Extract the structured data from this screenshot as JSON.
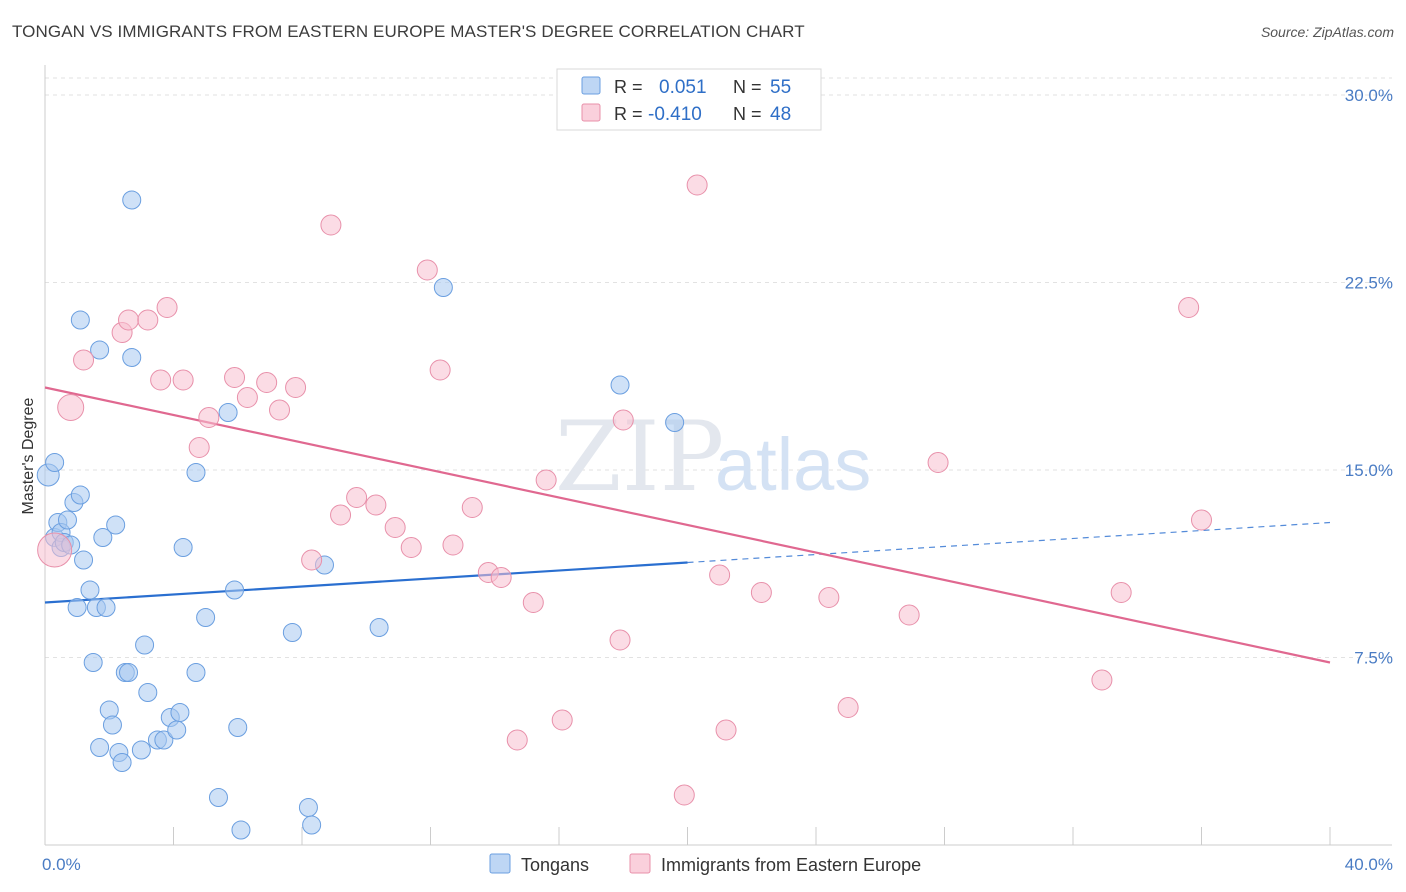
{
  "title": "TONGAN VS IMMIGRANTS FROM EASTERN EUROPE MASTER'S DEGREE CORRELATION CHART",
  "source": "Source: ZipAtlas.com",
  "watermark": {
    "zip": "ZIP",
    "atlas": "atlas"
  },
  "chart_data": {
    "type": "scatter",
    "title": "TONGAN VS IMMIGRANTS FROM EASTERN EUROPE MASTER'S DEGREE CORRELATION CHART",
    "xlabel": "",
    "ylabel": "Master's Degree",
    "xlim": [
      0,
      40
    ],
    "ylim": [
      0,
      31
    ],
    "x_tick_labels": [
      {
        "value": 0,
        "label": "0.0%"
      },
      {
        "value": 40,
        "label": "40.0%"
      }
    ],
    "y_tick_labels": [
      {
        "value": 7.5,
        "label": "7.5%"
      },
      {
        "value": 15.0,
        "label": "15.0%"
      },
      {
        "value": 22.5,
        "label": "22.5%"
      },
      {
        "value": 30.0,
        "label": "30.0%"
      }
    ],
    "grid": true,
    "legend_position": "top-center",
    "stats": [
      {
        "r_label": "R =",
        "r_value": "0.051",
        "n_label": "N =",
        "n_value": "55"
      },
      {
        "r_label": "R =",
        "r_value": "-0.410",
        "n_label": "N =",
        "n_value": "48"
      }
    ],
    "series": [
      {
        "name": "Tongans",
        "color": "#a8c8f0",
        "stroke": "#6b9fe0",
        "trend_color": "#2a6fd0",
        "trend": {
          "x0": 0,
          "y0": 9.7,
          "x1": 20,
          "y1": 11.3,
          "dash_x1": 40,
          "dash_y1": 12.9
        },
        "points": [
          [
            0.1,
            14.8
          ],
          [
            0.3,
            15.3
          ],
          [
            0.3,
            12.3
          ],
          [
            0.4,
            12.9
          ],
          [
            0.5,
            11.9
          ],
          [
            0.5,
            12.5
          ],
          [
            0.6,
            12.1
          ],
          [
            0.7,
            13.0
          ],
          [
            0.8,
            12.0
          ],
          [
            0.9,
            13.7
          ],
          [
            1.0,
            9.5
          ],
          [
            1.1,
            14.0
          ],
          [
            1.2,
            11.4
          ],
          [
            1.1,
            21.0
          ],
          [
            1.4,
            10.2
          ],
          [
            1.5,
            7.3
          ],
          [
            1.6,
            9.5
          ],
          [
            1.7,
            19.8
          ],
          [
            1.7,
            3.9
          ],
          [
            1.8,
            12.3
          ],
          [
            1.9,
            9.5
          ],
          [
            2.0,
            5.4
          ],
          [
            2.1,
            4.8
          ],
          [
            2.2,
            12.8
          ],
          [
            2.3,
            3.7
          ],
          [
            2.4,
            3.3
          ],
          [
            2.5,
            6.9
          ],
          [
            2.6,
            6.9
          ],
          [
            2.7,
            19.5
          ],
          [
            2.7,
            25.8
          ],
          [
            3.0,
            3.8
          ],
          [
            3.1,
            8.0
          ],
          [
            3.2,
            6.1
          ],
          [
            3.5,
            4.2
          ],
          [
            3.7,
            4.2
          ],
          [
            3.9,
            5.1
          ],
          [
            4.1,
            4.6
          ],
          [
            4.2,
            5.3
          ],
          [
            4.3,
            11.9
          ],
          [
            4.7,
            6.9
          ],
          [
            4.7,
            14.9
          ],
          [
            5.0,
            9.1
          ],
          [
            5.4,
            1.9
          ],
          [
            5.7,
            17.3
          ],
          [
            5.9,
            10.2
          ],
          [
            6.0,
            4.7
          ],
          [
            6.1,
            0.6
          ],
          [
            7.7,
            8.5
          ],
          [
            8.2,
            1.5
          ],
          [
            8.3,
            0.8
          ],
          [
            8.7,
            11.2
          ],
          [
            10.4,
            8.7
          ],
          [
            12.4,
            22.3
          ],
          [
            17.9,
            18.4
          ],
          [
            19.6,
            16.9
          ]
        ],
        "sizes": [
          11,
          9,
          9,
          9,
          9,
          9,
          9,
          9,
          9,
          9,
          9,
          9,
          9,
          9,
          9,
          9,
          9,
          9,
          9,
          9,
          9,
          9,
          9,
          9,
          9,
          9,
          9,
          9,
          9,
          9,
          9,
          9,
          9,
          9,
          9,
          9,
          9,
          9,
          9,
          9,
          9,
          9,
          9,
          9,
          9,
          9,
          9,
          9,
          9,
          9,
          9,
          9,
          9,
          9,
          9
        ]
      },
      {
        "name": "Immigrants from Eastern Europe",
        "color": "#f8c0d0",
        "stroke": "#e890aa",
        "trend_color": "#e06890",
        "trend": {
          "x0": 0,
          "y0": 18.3,
          "x1": 40,
          "y1": 7.3
        },
        "points": [
          [
            0.3,
            11.8
          ],
          [
            0.8,
            17.5
          ],
          [
            1.2,
            19.4
          ],
          [
            2.4,
            20.5
          ],
          [
            2.6,
            21.0
          ],
          [
            3.2,
            21.0
          ],
          [
            3.6,
            18.6
          ],
          [
            3.8,
            21.5
          ],
          [
            4.3,
            18.6
          ],
          [
            4.8,
            15.9
          ],
          [
            5.1,
            17.1
          ],
          [
            5.9,
            18.7
          ],
          [
            6.3,
            17.9
          ],
          [
            6.9,
            18.5
          ],
          [
            7.3,
            17.4
          ],
          [
            7.8,
            18.3
          ],
          [
            8.3,
            11.4
          ],
          [
            8.9,
            24.8
          ],
          [
            9.2,
            13.2
          ],
          [
            9.7,
            13.9
          ],
          [
            10.3,
            13.6
          ],
          [
            10.9,
            12.7
          ],
          [
            11.4,
            11.9
          ],
          [
            11.9,
            23.0
          ],
          [
            12.3,
            19.0
          ],
          [
            12.7,
            12.0
          ],
          [
            13.3,
            13.5
          ],
          [
            13.8,
            10.9
          ],
          [
            14.2,
            10.7
          ],
          [
            14.7,
            4.2
          ],
          [
            15.2,
            9.7
          ],
          [
            15.6,
            14.6
          ],
          [
            16.1,
            5.0
          ],
          [
            17.9,
            8.2
          ],
          [
            18.0,
            17.0
          ],
          [
            19.9,
            2.0
          ],
          [
            20.3,
            26.4
          ],
          [
            21.0,
            10.8
          ],
          [
            21.2,
            4.6
          ],
          [
            22.3,
            10.1
          ],
          [
            24.4,
            9.9
          ],
          [
            25.0,
            5.5
          ],
          [
            26.9,
            9.2
          ],
          [
            27.8,
            15.3
          ],
          [
            32.9,
            6.6
          ],
          [
            33.5,
            10.1
          ],
          [
            35.6,
            21.5
          ],
          [
            36.0,
            13.0
          ]
        ],
        "sizes": [
          17,
          13,
          10,
          10,
          10,
          10,
          10,
          10,
          10,
          10,
          10,
          10,
          10,
          10,
          10,
          10,
          10,
          10,
          10,
          10,
          10,
          10,
          10,
          10,
          10,
          10,
          10,
          10,
          10,
          10,
          10,
          10,
          10,
          10,
          10,
          10,
          10,
          10,
          10,
          10,
          10,
          10,
          10,
          10,
          10,
          10,
          10,
          10
        ]
      }
    ]
  }
}
